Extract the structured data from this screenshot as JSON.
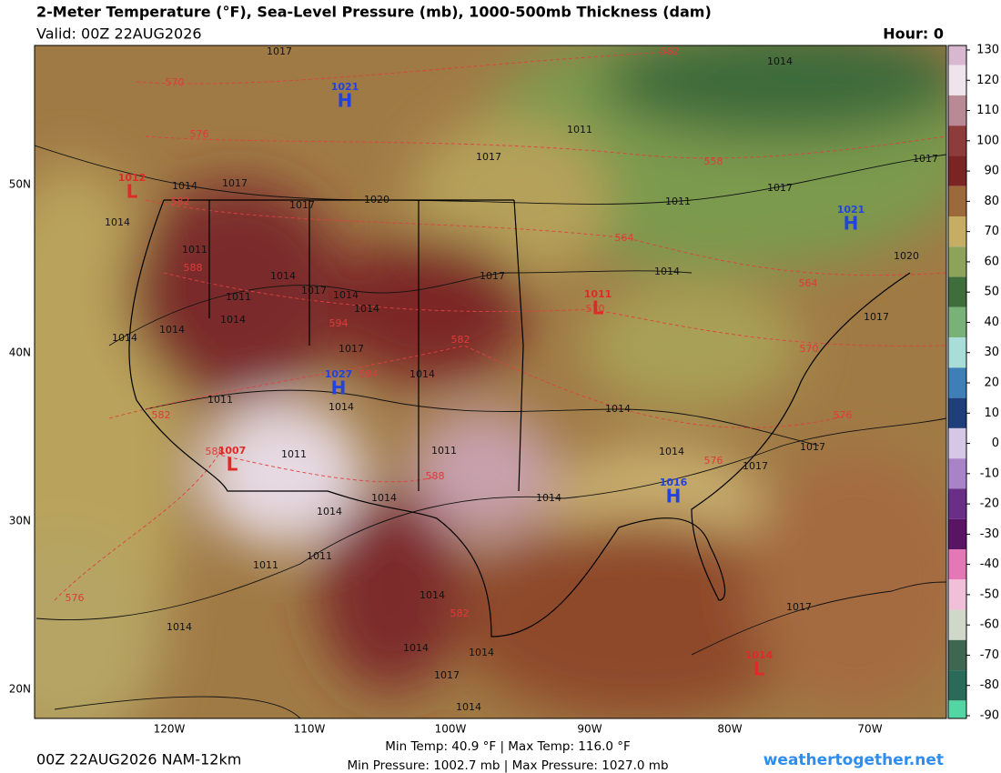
{
  "header": {
    "title": "2-Meter Temperature (°F), Sea-Level Pressure (mb), 1000-500mb Thickness (dam)",
    "valid": "Valid: 00Z 22AUG2026",
    "hour": "Hour: 0"
  },
  "colorbar": {
    "ticks": [
      130,
      120,
      110,
      100,
      90,
      80,
      70,
      60,
      50,
      40,
      30,
      20,
      10,
      0,
      -10,
      -20,
      -30,
      -40,
      -50,
      -60,
      -70,
      -80,
      -90
    ],
    "colors": [
      "#d8b8d0",
      "#efe4ec",
      "#b98a95",
      "#8d3b3b",
      "#7a2424",
      "#9c6a3a",
      "#c6ad64",
      "#8da35a",
      "#3f6e3d",
      "#79b277",
      "#a8ddd8",
      "#3f7fb8",
      "#1e3f7a",
      "#d7c7e6",
      "#a883c7",
      "#6b2e87",
      "#5a1464",
      "#e477b6",
      "#f2bfd8",
      "#cfd8c9",
      "#3f6650",
      "#2a6a58",
      "#54d6a4"
    ]
  },
  "lat_labels": [
    "50N",
    "40N",
    "30N",
    "20N"
  ],
  "lon_labels": [
    "120W",
    "110W",
    "100W",
    "90W",
    "80W",
    "70W"
  ],
  "centers": [
    {
      "letter": "H",
      "pressure": 1021
    },
    {
      "letter": "H",
      "pressure": 1021
    },
    {
      "letter": "H",
      "pressure": 1027
    },
    {
      "letter": "H",
      "pressure": 1016
    },
    {
      "letter": "L",
      "pressure": 1011
    },
    {
      "letter": "L",
      "pressure": 1012
    },
    {
      "letter": "L",
      "pressure": 1007
    },
    {
      "letter": "L",
      "pressure": 1014
    }
  ],
  "isobar_labels": [
    1017,
    1014,
    1011,
    1017,
    1014,
    1017,
    1020,
    1017,
    1011,
    1017,
    1017,
    1014,
    1011,
    1020,
    1017,
    1014,
    1014,
    1017,
    1014,
    1011,
    1014,
    1014,
    1017,
    1014,
    1014,
    1017,
    1014,
    1011,
    1014,
    1014,
    1014,
    1011,
    1017,
    1017,
    1011,
    1014,
    1014,
    1014,
    1011,
    1011,
    1014,
    1017,
    1014,
    1014,
    1014,
    1017,
    1014
  ],
  "thickness_labels": [
    570,
    576,
    582,
    558,
    582,
    564,
    588,
    564,
    570,
    594,
    582,
    570,
    594,
    582,
    576,
    588,
    576,
    588,
    582,
    576
  ],
  "footer": {
    "min_max_temp": "Min Temp:  40.9 °F | Max Temp: 116.0 °F",
    "min_max_pressure": "Min Pressure: 1002.7 mb | Max Pressure: 1027.0 mb",
    "run": "00Z 22AUG2026 NAM-12km",
    "site": "weathertogether.net"
  }
}
